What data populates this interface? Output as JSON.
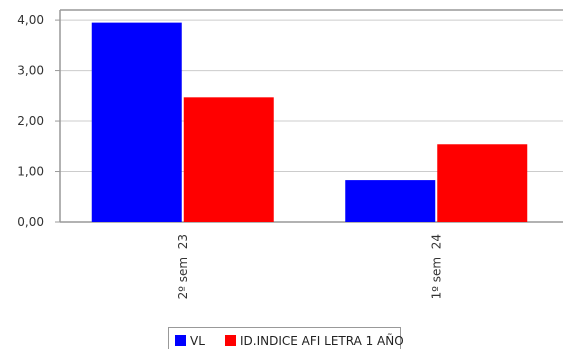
{
  "chart_data": {
    "type": "bar",
    "categories": [
      "2º sem  23",
      "1º sem  24"
    ],
    "series": [
      {
        "name": "VL",
        "values": [
          3.95,
          0.83
        ],
        "color": "#0000ff"
      },
      {
        "name": "ID.INDICE AFI LETRA 1 AÑO",
        "values": [
          2.47,
          1.54
        ],
        "color": "#ff0000"
      }
    ],
    "yticks": [
      "0,00",
      "1,00",
      "2,00",
      "3,00",
      "4,00"
    ],
    "ylim": [
      0,
      4.2
    ],
    "grid": true,
    "legend_position": "bottom-center",
    "title": "",
    "xlabel": "",
    "ylabel": ""
  }
}
